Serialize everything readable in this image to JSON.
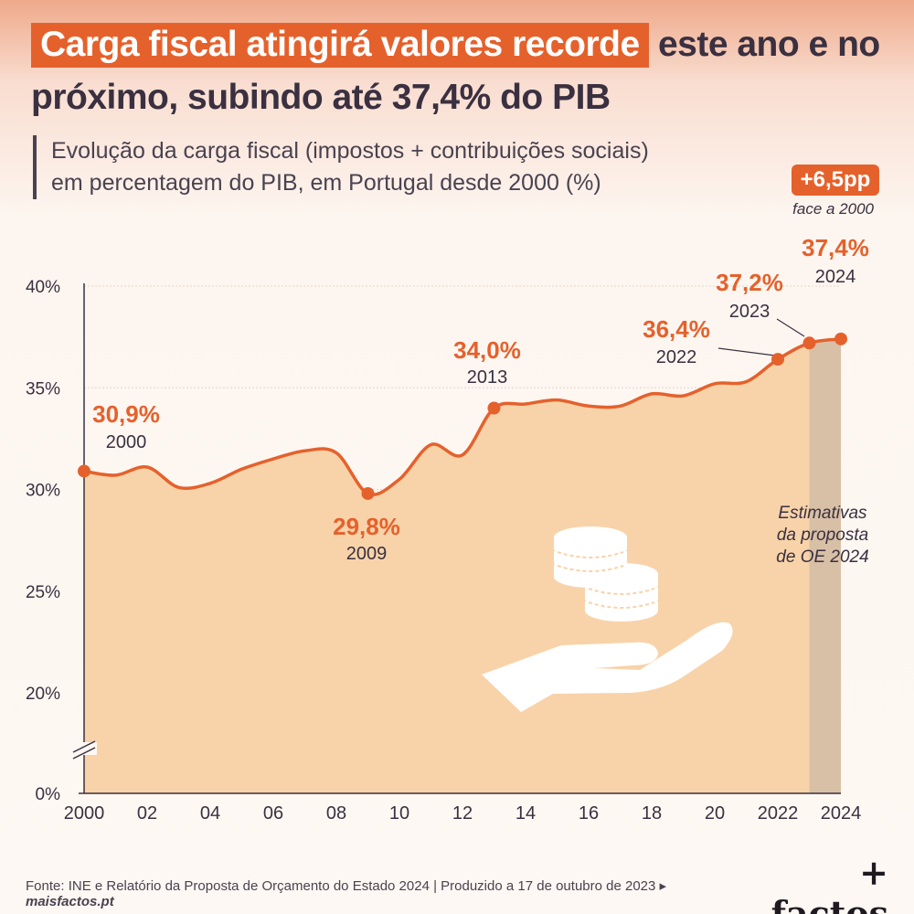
{
  "header": {
    "title_highlight": "Carga fiscal atingirá valores recorde",
    "title_rest": " este ano e no próximo, subindo até 37,4% do PIB",
    "subtitle_line1": "Evolução da carga fiscal (impostos + contribuições sociais)",
    "subtitle_line2": "em percentagem do PIB, em Portugal desde 2000 (%)"
  },
  "badge": {
    "label": "+6,5pp",
    "note": "face a 2000"
  },
  "chart_data": {
    "type": "area",
    "title": "Carga fiscal atingirá valores recorde este ano e no próximo, subindo até 37,4% do PIB",
    "subtitle": "Evolução da carga fiscal (impostos + contribuições sociais) em percentagem do PIB, em Portugal desde 2000 (%)",
    "x": [
      2000,
      2001,
      2002,
      2003,
      2004,
      2005,
      2006,
      2007,
      2008,
      2009,
      2010,
      2011,
      2012,
      2013,
      2014,
      2015,
      2016,
      2017,
      2018,
      2019,
      2020,
      2021,
      2022,
      2023,
      2024
    ],
    "values": [
      30.9,
      30.7,
      31.1,
      30.1,
      30.3,
      31.0,
      31.5,
      31.9,
      31.8,
      29.8,
      30.5,
      32.2,
      31.7,
      34.0,
      34.2,
      34.4,
      34.1,
      34.1,
      34.7,
      34.6,
      35.2,
      35.3,
      36.4,
      37.2,
      37.4
    ],
    "xlim": [
      2000,
      2024
    ],
    "y_ticks": [
      "40%",
      "35%",
      "30%",
      "25%",
      "20%",
      "0%"
    ],
    "x_ticks": [
      "2000",
      "02",
      "04",
      "06",
      "08",
      "10",
      "12",
      "14",
      "16",
      "18",
      "20",
      "2022",
      "2024"
    ],
    "axis_break": true,
    "grid": "horizontal",
    "highlights": [
      {
        "year": 2000,
        "label": "30,9%",
        "year_label": "2000"
      },
      {
        "year": 2009,
        "label": "29,8%",
        "year_label": "2009"
      },
      {
        "year": 2013,
        "label": "34,0%",
        "year_label": "2013"
      },
      {
        "year": 2022,
        "label": "36,4%",
        "year_label": "2022"
      },
      {
        "year": 2023,
        "label": "37,2%",
        "year_label": "2023"
      },
      {
        "year": 2024,
        "label": "37,4%",
        "year_label": "2024"
      }
    ],
    "estimate_region": {
      "from": 2023,
      "to": 2024,
      "label_lines": [
        "Estimativas",
        "da proposta",
        "de OE 2024"
      ]
    },
    "colors": {
      "line": "#e5612c",
      "area": "#f8d3a9",
      "estimate": "#d8c0a6",
      "text": "#3a3040",
      "accent": "#e5612c"
    }
  },
  "footer": {
    "source_text": "Fonte: INE e Relatório da Proposta de Orçamento do Estado 2024 | Produzido a 17 de outubro de 2023 ▸ ",
    "source_site": "maisfactos.pt",
    "logo": "+ factos"
  }
}
